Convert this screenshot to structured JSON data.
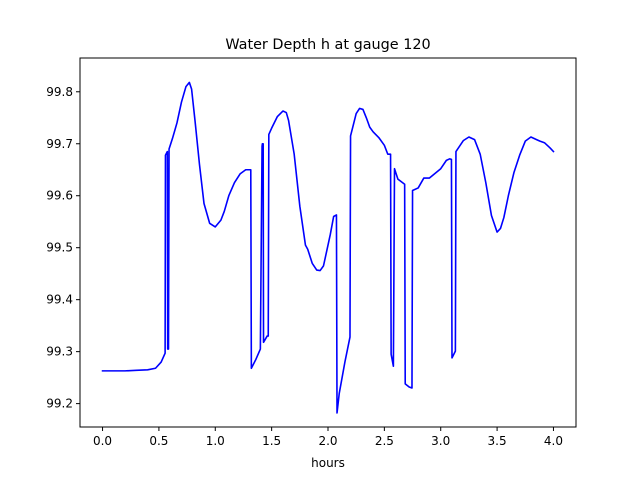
{
  "chart_data": {
    "type": "line",
    "title": "Water Depth h at gauge 120",
    "xlabel": "hours",
    "ylabel": "",
    "xlim": [
      -0.2,
      4.2
    ],
    "ylim": [
      99.155,
      99.865
    ],
    "x_ticks": [
      0.0,
      0.5,
      1.0,
      1.5,
      2.0,
      2.5,
      3.0,
      3.5,
      4.0
    ],
    "x_tick_labels": [
      "0.0",
      "0.5",
      "1.0",
      "1.5",
      "2.0",
      "2.5",
      "3.0",
      "3.5",
      "4.0"
    ],
    "y_ticks": [
      99.2,
      99.3,
      99.4,
      99.5,
      99.6,
      99.7,
      99.8
    ],
    "y_tick_labels": [
      "99.2",
      "99.3",
      "99.4",
      "99.5",
      "99.6",
      "99.7",
      "99.8"
    ],
    "grid": false,
    "series": [
      {
        "color": "#0000ff",
        "x": [
          0.0,
          0.1,
          0.2,
          0.3,
          0.4,
          0.47,
          0.52,
          0.555,
          0.558,
          0.575,
          0.578,
          0.585,
          0.59,
          0.62,
          0.66,
          0.7,
          0.74,
          0.77,
          0.79,
          0.82,
          0.86,
          0.9,
          0.95,
          1.0,
          1.05,
          1.08,
          1.12,
          1.17,
          1.22,
          1.27,
          1.315,
          1.32,
          1.36,
          1.4,
          1.415,
          1.418,
          1.425,
          1.428,
          1.455,
          1.46,
          1.47,
          1.475,
          1.5,
          1.55,
          1.6,
          1.63,
          1.65,
          1.7,
          1.75,
          1.8,
          1.82,
          1.86,
          1.9,
          1.93,
          1.96,
          1.99,
          2.02,
          2.05,
          2.075,
          2.08,
          2.1,
          2.15,
          2.195,
          2.2,
          2.25,
          2.28,
          2.31,
          2.34,
          2.37,
          2.4,
          2.45,
          2.5,
          2.53,
          2.555,
          2.56,
          2.58,
          2.59,
          2.62,
          2.68,
          2.685,
          2.72,
          2.745,
          2.75,
          2.8,
          2.85,
          2.9,
          2.95,
          3.0,
          3.05,
          3.08,
          3.095,
          3.1,
          3.13,
          3.135,
          3.2,
          3.25,
          3.3,
          3.35,
          3.4,
          3.45,
          3.5,
          3.53,
          3.56,
          3.6,
          3.65,
          3.7,
          3.75,
          3.8,
          3.85,
          3.88,
          3.92,
          3.97,
          4.0
        ],
        "y": [
          99.263,
          99.263,
          99.263,
          99.264,
          99.265,
          99.268,
          99.28,
          99.297,
          99.678,
          99.685,
          99.305,
          99.305,
          99.69,
          99.71,
          99.74,
          99.78,
          99.81,
          99.818,
          99.805,
          99.745,
          99.66,
          99.585,
          99.547,
          99.54,
          99.553,
          99.57,
          99.6,
          99.625,
          99.642,
          99.65,
          99.65,
          99.268,
          99.285,
          99.305,
          99.695,
          99.7,
          99.7,
          99.318,
          99.328,
          99.33,
          99.33,
          99.718,
          99.73,
          99.752,
          99.763,
          99.76,
          99.745,
          99.68,
          99.58,
          99.505,
          99.497,
          99.47,
          99.457,
          99.456,
          99.465,
          99.495,
          99.525,
          99.56,
          99.563,
          99.182,
          99.22,
          99.28,
          99.328,
          99.715,
          99.758,
          99.768,
          99.766,
          99.75,
          99.732,
          99.723,
          99.712,
          99.697,
          99.68,
          99.68,
          99.295,
          99.272,
          99.652,
          99.632,
          99.622,
          99.238,
          99.232,
          99.23,
          99.61,
          99.615,
          99.634,
          99.634,
          99.643,
          99.652,
          99.668,
          99.671,
          99.67,
          99.288,
          99.301,
          99.685,
          99.706,
          99.713,
          99.708,
          99.68,
          99.625,
          99.562,
          99.53,
          99.537,
          99.558,
          99.6,
          99.645,
          99.678,
          99.705,
          99.713,
          99.708,
          99.705,
          99.702,
          99.692,
          99.685
        ]
      }
    ]
  }
}
